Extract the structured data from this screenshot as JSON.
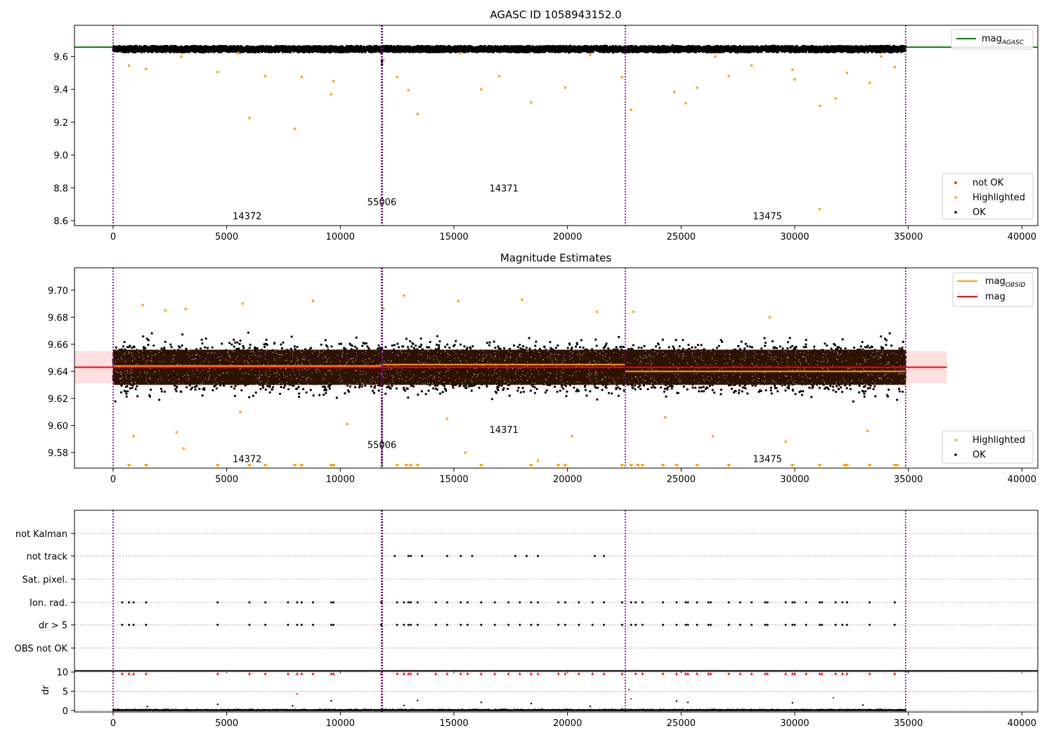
{
  "chart_data": [
    {
      "type": "scatter",
      "title": "AGASC ID 1058943152.0",
      "xlim": [
        -1700,
        40700
      ],
      "ylim": [
        8.57,
        9.79
      ],
      "xticks": [
        0,
        5000,
        10000,
        15000,
        20000,
        25000,
        30000,
        35000,
        40000
      ],
      "xtick_labels": [
        "0",
        "5000",
        "10000",
        "15000",
        "20000",
        "25000",
        "30000",
        "35000",
        "40000"
      ],
      "yticks": [
        8.6,
        8.8,
        9.0,
        9.2,
        9.4,
        9.6
      ],
      "ytick_labels": [
        "8.6",
        "8.8",
        "9.0",
        "9.2",
        "9.4",
        "9.6"
      ],
      "obs_boundaries": [
        0,
        11830,
        22540,
        34880
      ],
      "obs_labels": [
        {
          "text": "14372",
          "x": 5900,
          "y": 8.63
        },
        {
          "text": "55006",
          "x": 11830,
          "y": 8.715
        },
        {
          "text": "14371",
          "x": 17200,
          "y": 8.8
        },
        {
          "text": "13475",
          "x": 28800,
          "y": 8.63
        }
      ],
      "mag_agasc": 9.657,
      "ok_band": {
        "x": [
          0,
          34880
        ],
        "y": [
          9.625,
          9.665
        ]
      },
      "highlighted_points": [
        [
          700,
          9.545
        ],
        [
          1450,
          9.525
        ],
        [
          4600,
          9.505
        ],
        [
          6000,
          9.225
        ],
        [
          6700,
          9.48
        ],
        [
          8000,
          9.16
        ],
        [
          8300,
          9.475
        ],
        [
          9600,
          9.37
        ],
        [
          9700,
          9.45
        ],
        [
          11900,
          9.58
        ],
        [
          12500,
          9.475
        ],
        [
          13000,
          9.395
        ],
        [
          13400,
          9.25
        ],
        [
          16200,
          9.4
        ],
        [
          17000,
          9.48
        ],
        [
          18400,
          9.32
        ],
        [
          19900,
          9.41
        ],
        [
          22400,
          9.475
        ],
        [
          22800,
          9.275
        ],
        [
          24700,
          9.385
        ],
        [
          25200,
          9.315
        ],
        [
          25700,
          9.41
        ],
        [
          27100,
          9.48
        ],
        [
          28100,
          9.545
        ],
        [
          29900,
          9.52
        ],
        [
          30000,
          9.46
        ],
        [
          31100,
          9.3
        ],
        [
          31800,
          9.345
        ],
        [
          32300,
          9.5
        ],
        [
          33300,
          9.44
        ],
        [
          34400,
          9.535
        ],
        [
          31100,
          8.67
        ],
        [
          3000,
          9.6
        ],
        [
          5500,
          9.62
        ],
        [
          15300,
          9.62
        ],
        [
          21000,
          9.61
        ],
        [
          26500,
          9.6
        ],
        [
          33800,
          9.6
        ]
      ],
      "legend_lines": [
        {
          "label": "mag",
          "sub": "AGASC",
          "color": "#008000"
        }
      ],
      "legend_scatter": [
        {
          "label": "not OK",
          "color": "#ff0000"
        },
        {
          "label": "Highlighted",
          "color": "#ffa500"
        },
        {
          "label": "OK",
          "color": "#000000"
        }
      ]
    },
    {
      "type": "scatter",
      "title": "Magnitude Estimates",
      "xlim": [
        -1700,
        40700
      ],
      "ylim": [
        9.5685,
        9.7165
      ],
      "xticks": [
        0,
        5000,
        10000,
        15000,
        20000,
        25000,
        30000,
        35000,
        40000
      ],
      "xtick_labels": [
        "0",
        "5000",
        "10000",
        "15000",
        "20000",
        "25000",
        "30000",
        "35000",
        "40000"
      ],
      "yticks": [
        9.58,
        9.6,
        9.62,
        9.64,
        9.66,
        9.68,
        9.7
      ],
      "ytick_labels": [
        "9.58",
        "9.60",
        "9.62",
        "9.64",
        "9.66",
        "9.68",
        "9.70"
      ],
      "obs_boundaries": [
        0,
        11830,
        22540,
        34880
      ],
      "obs_labels": [
        {
          "text": "14372",
          "x": 5900,
          "y": 9.5755
        },
        {
          "text": "55006",
          "x": 11830,
          "y": 9.586
        },
        {
          "text": "14371",
          "x": 17200,
          "y": 9.597
        },
        {
          "text": "13475",
          "x": 28800,
          "y": 9.5755
        }
      ],
      "mag": 9.643,
      "mag_band": [
        9.631,
        9.655
      ],
      "mag_band_x": [
        -1700,
        36700
      ],
      "mag_obsid": [
        {
          "x": [
            0,
            11830
          ],
          "y": 9.644
        },
        {
          "x": [
            11830,
            22540
          ],
          "y": 9.645
        },
        {
          "x": [
            22540,
            34880
          ],
          "y": 9.64
        }
      ],
      "core_band": {
        "y": [
          9.63,
          9.656
        ]
      },
      "spread": {
        "lo": 9.606,
        "hi": 9.677
      },
      "highlighted_points": [
        [
          1300,
          9.689
        ],
        [
          2300,
          9.685
        ],
        [
          3200,
          9.686
        ],
        [
          5700,
          9.69
        ],
        [
          8800,
          9.692
        ],
        [
          11900,
          9.686
        ],
        [
          12800,
          9.696
        ],
        [
          15200,
          9.692
        ],
        [
          18000,
          9.693
        ],
        [
          21300,
          9.684
        ],
        [
          22900,
          9.684
        ],
        [
          28900,
          9.68
        ],
        [
          900,
          9.592
        ],
        [
          2800,
          9.595
        ],
        [
          3100,
          9.583
        ],
        [
          10300,
          9.601
        ],
        [
          15500,
          9.58
        ],
        [
          18700,
          9.574
        ],
        [
          20200,
          9.592
        ],
        [
          26400,
          9.592
        ],
        [
          29600,
          9.588
        ],
        [
          33200,
          9.596
        ],
        [
          5600,
          9.61
        ],
        [
          14700,
          9.605
        ],
        [
          24300,
          9.606
        ]
      ],
      "clipped_low_points": [
        700,
        1450,
        4600,
        6000,
        6700,
        8000,
        8300,
        9600,
        9700,
        12500,
        12900,
        13100,
        13400,
        16200,
        18400,
        19600,
        19900,
        22400,
        22800,
        23100,
        23300,
        24200,
        24800,
        25700,
        27100,
        29900,
        31100,
        32200,
        32300,
        33300,
        34400,
        34500
      ],
      "legend_lines": [
        {
          "label": "mag",
          "sub": "OBSID",
          "color": "#ffa500"
        },
        {
          "label": "mag",
          "sub": "",
          "color": "#ff0000"
        }
      ],
      "legend_scatter": [
        {
          "label": "Highlighted",
          "color": "#ffa500"
        },
        {
          "label": "OK",
          "color": "#000000"
        }
      ]
    },
    {
      "type": "scatter",
      "xlim": [
        -1700,
        40700
      ],
      "obs_boundaries": [
        0,
        11830,
        22540,
        34880
      ],
      "flag_labels": [
        "not Kalman",
        "not track",
        "Sat. pixel.",
        "Ion. rad.",
        "dr > 5",
        "OBS not OK"
      ],
      "flag_points": {
        "not track": [
          12400,
          13000,
          13100,
          13600,
          14700,
          15300,
          15800,
          17700,
          18200,
          18700,
          21200,
          21600
        ],
        "Ion. rad.": [
          400,
          700,
          900,
          1450,
          4600,
          6000,
          6700,
          7700,
          8100,
          8300,
          8800,
          9600,
          9700,
          11800,
          12500,
          12800,
          13000,
          13100,
          13400,
          14200,
          14700,
          15300,
          15600,
          16200,
          16800,
          17400,
          17900,
          18400,
          18700,
          19600,
          19900,
          20500,
          21100,
          21600,
          22400,
          22800,
          23000,
          23300,
          24200,
          24800,
          25200,
          25300,
          25700,
          26200,
          26300,
          27100,
          27600,
          28100,
          28700,
          28800,
          29600,
          29900,
          30000,
          30500,
          31100,
          31200,
          31800,
          32100,
          32300,
          33300,
          34400
        ],
        "dr > 5": [
          400,
          700,
          900,
          1450,
          4600,
          6000,
          6700,
          7700,
          8100,
          8300,
          8800,
          9600,
          9700,
          11800,
          12500,
          12800,
          13000,
          13100,
          13400,
          14200,
          14700,
          15300,
          15600,
          16200,
          16800,
          17400,
          17900,
          18400,
          18700,
          19600,
          19900,
          20500,
          21100,
          21600,
          22400,
          22800,
          23000,
          23300,
          24200,
          24800,
          25200,
          25300,
          25700,
          26200,
          26300,
          27100,
          27600,
          28100,
          28700,
          28800,
          29600,
          29900,
          30000,
          30500,
          31100,
          31200,
          31800,
          32100,
          32300,
          33300,
          34400
        ]
      }
    },
    {
      "type": "scatter",
      "ylabel": "dr",
      "xlim": [
        -1700,
        40700
      ],
      "ylim": [
        -0.4,
        10.2
      ],
      "yticks": [
        0,
        5,
        10
      ],
      "ytick_labels": [
        "0",
        "5",
        "10"
      ],
      "xticks": [
        0,
        5000,
        10000,
        15000,
        20000,
        25000,
        30000,
        35000,
        40000
      ],
      "xtick_labels": [
        "0",
        "5000",
        "10000",
        "15000",
        "20000",
        "25000",
        "30000",
        "35000",
        "40000"
      ],
      "obs_boundaries": [
        0,
        11830,
        22540,
        34880
      ],
      "dr_cap_points": [
        400,
        700,
        900,
        1450,
        4600,
        6000,
        6700,
        7700,
        8100,
        8300,
        8800,
        9600,
        9700,
        11800,
        12500,
        12800,
        13000,
        13100,
        13400,
        14200,
        14700,
        15300,
        15600,
        16200,
        16800,
        17400,
        17900,
        18400,
        18700,
        19600,
        19900,
        20500,
        21100,
        21600,
        22400,
        23000,
        23300,
        24200,
        24800,
        25200,
        25300,
        25700,
        26200,
        26300,
        27100,
        27600,
        28100,
        28700,
        28800,
        29600,
        29900,
        30000,
        30500,
        31100,
        31200,
        31800,
        32100,
        32300,
        33300,
        34400
      ],
      "dr_red_points": [
        [
          8100,
          4.3
        ],
        [
          22700,
          5.4
        ],
        [
          22800,
          3.0
        ],
        [
          31700,
          3.3
        ]
      ],
      "dr_black_points": [
        [
          4600,
          1.6
        ],
        [
          9600,
          2.5
        ],
        [
          12800,
          1.3
        ],
        [
          13400,
          2.6
        ],
        [
          16200,
          2.1
        ],
        [
          18400,
          1.8
        ],
        [
          24800,
          2.4
        ],
        [
          25300,
          2.1
        ],
        [
          29900,
          2.0
        ],
        [
          1500,
          1.0
        ],
        [
          7900,
          1.2
        ],
        [
          21000,
          1.1
        ],
        [
          33000,
          1.4
        ]
      ]
    }
  ]
}
